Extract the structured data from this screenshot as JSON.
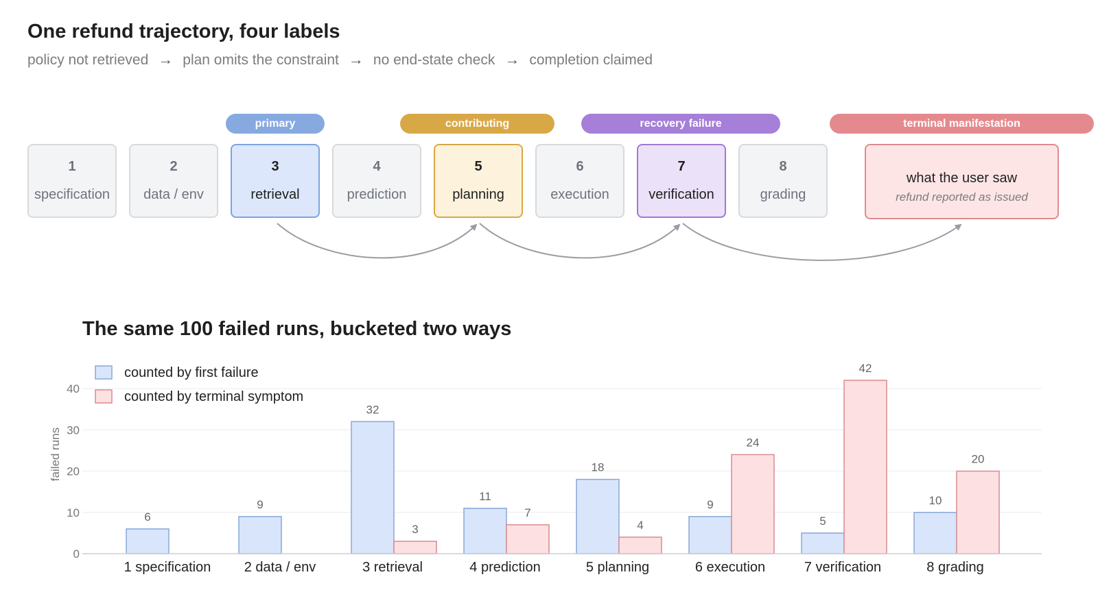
{
  "header": {
    "title": "One refund trajectory, four labels",
    "steps": [
      "policy not retrieved",
      "plan omits the constraint",
      "no end-state check",
      "completion claimed"
    ],
    "arrow": "→"
  },
  "roles": {
    "primary": "primary",
    "contributing": "contributing",
    "recovery": "recovery failure",
    "terminal": "terminal manifestation"
  },
  "stages": [
    {
      "num": "1",
      "label": "specification",
      "role": ""
    },
    {
      "num": "2",
      "label": "data / env",
      "role": ""
    },
    {
      "num": "3",
      "label": "retrieval",
      "role": "primary"
    },
    {
      "num": "4",
      "label": "prediction",
      "role": ""
    },
    {
      "num": "5",
      "label": "planning",
      "role": "contributing"
    },
    {
      "num": "6",
      "label": "execution",
      "role": ""
    },
    {
      "num": "7",
      "label": "verification",
      "role": "recovery"
    },
    {
      "num": "8",
      "label": "grading",
      "role": ""
    }
  ],
  "terminal": {
    "title": "what the user saw",
    "subtitle": "refund reported as issued"
  },
  "colors": {
    "first_fill": "#d9e5fb",
    "first_stroke": "#88a8d6",
    "terminal_fill": "#fde1e2",
    "terminal_stroke": "#d98a90",
    "arc": "#999da3"
  },
  "chart_data": {
    "type": "bar",
    "title": "The same 100 failed runs, bucketed two ways",
    "categories": [
      "1 specification",
      "2 data / env",
      "3 retrieval",
      "4 prediction",
      "5 planning",
      "6 execution",
      "7 verification",
      "8 grading"
    ],
    "series": [
      {
        "name": "counted by first failure",
        "values": [
          6,
          9,
          32,
          11,
          18,
          9,
          5,
          10
        ]
      },
      {
        "name": "counted by terminal symptom",
        "values": [
          0,
          0,
          3,
          7,
          4,
          24,
          42,
          20
        ]
      }
    ],
    "ylabel": "failed runs",
    "yticks": [
      0,
      10,
      20,
      30,
      40
    ],
    "ylim": [
      0,
      44
    ],
    "grid": true,
    "legend": "top-left"
  }
}
